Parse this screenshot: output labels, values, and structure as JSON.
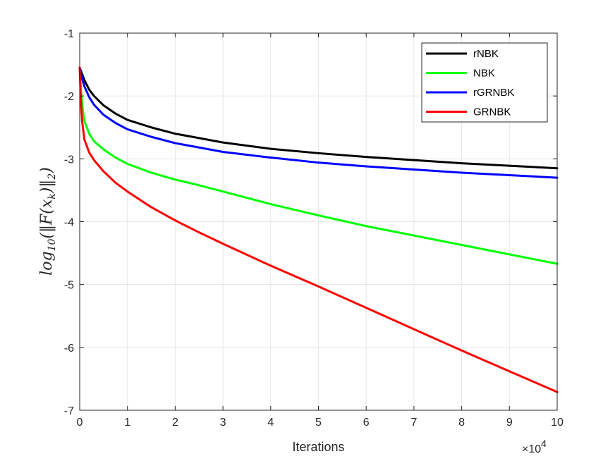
{
  "chart_data": {
    "type": "line",
    "xlabel": "Iterations",
    "ylabel": "log10(||F(x_k)||_2)",
    "ylabel_parts": {
      "pre": "log",
      "sub1": "10",
      "mid": "(‖F(x",
      "sub2": "k",
      "post": ")‖",
      "sub3": "2",
      "end": ")"
    },
    "x_exponent_label": {
      "base": "×10",
      "exp": "4"
    },
    "xlim": [
      0,
      100000
    ],
    "ylim": [
      -7,
      -1
    ],
    "x_ticks": [
      0,
      10000,
      20000,
      30000,
      40000,
      50000,
      60000,
      70000,
      80000,
      90000,
      100000
    ],
    "x_tick_labels": [
      "0",
      "1",
      "2",
      "3",
      "4",
      "5",
      "6",
      "7",
      "8",
      "9",
      "10"
    ],
    "y_ticks": [
      -7,
      -6,
      -5,
      -4,
      -3,
      -2,
      -1
    ],
    "y_tick_labels": [
      "-7",
      "-6",
      "-5",
      "-4",
      "-3",
      "-2",
      "-1"
    ],
    "grid": true,
    "legend_position": "top-right",
    "series": [
      {
        "name": "rNBK",
        "color": "#000000",
        "x": [
          0,
          500,
          1000,
          2000,
          3000,
          5000,
          7500,
          10000,
          15000,
          20000,
          25000,
          30000,
          40000,
          50000,
          60000,
          70000,
          80000,
          90000,
          100000
        ],
        "y": [
          -1.55,
          -1.65,
          -1.75,
          -1.9,
          -2.0,
          -2.15,
          -2.28,
          -2.38,
          -2.5,
          -2.6,
          -2.67,
          -2.74,
          -2.84,
          -2.91,
          -2.97,
          -3.02,
          -3.07,
          -3.11,
          -3.15
        ]
      },
      {
        "name": "NBK",
        "color": "#00ff00",
        "x": [
          0,
          300,
          700,
          1000,
          2000,
          3000,
          5000,
          7500,
          10000,
          15000,
          20000,
          25000,
          30000,
          40000,
          50000,
          60000,
          70000,
          80000,
          90000,
          100000
        ],
        "y": [
          -1.55,
          -1.95,
          -2.25,
          -2.4,
          -2.6,
          -2.72,
          -2.85,
          -2.98,
          -3.08,
          -3.22,
          -3.33,
          -3.42,
          -3.52,
          -3.72,
          -3.9,
          -4.07,
          -4.22,
          -4.37,
          -4.52,
          -4.67
        ]
      },
      {
        "name": "rGRNBK",
        "color": "#0000ff",
        "x": [
          0,
          500,
          1000,
          2000,
          3000,
          5000,
          7500,
          10000,
          15000,
          20000,
          25000,
          30000,
          40000,
          50000,
          60000,
          70000,
          80000,
          90000,
          100000
        ],
        "y": [
          -1.55,
          -1.72,
          -1.85,
          -2.02,
          -2.14,
          -2.3,
          -2.43,
          -2.53,
          -2.65,
          -2.75,
          -2.82,
          -2.89,
          -2.98,
          -3.06,
          -3.12,
          -3.17,
          -3.22,
          -3.26,
          -3.3
        ]
      },
      {
        "name": "GRNBK",
        "color": "#ff0000",
        "x": [
          0,
          200,
          500,
          1000,
          2000,
          3000,
          5000,
          7500,
          10000,
          15000,
          20000,
          25000,
          30000,
          40000,
          50000,
          60000,
          70000,
          80000,
          90000,
          100000
        ],
        "y": [
          -1.55,
          -2.0,
          -2.4,
          -2.7,
          -2.9,
          -3.02,
          -3.2,
          -3.38,
          -3.52,
          -3.77,
          -3.98,
          -4.17,
          -4.35,
          -4.7,
          -5.03,
          -5.37,
          -5.71,
          -6.05,
          -6.38,
          -6.71
        ]
      }
    ]
  }
}
